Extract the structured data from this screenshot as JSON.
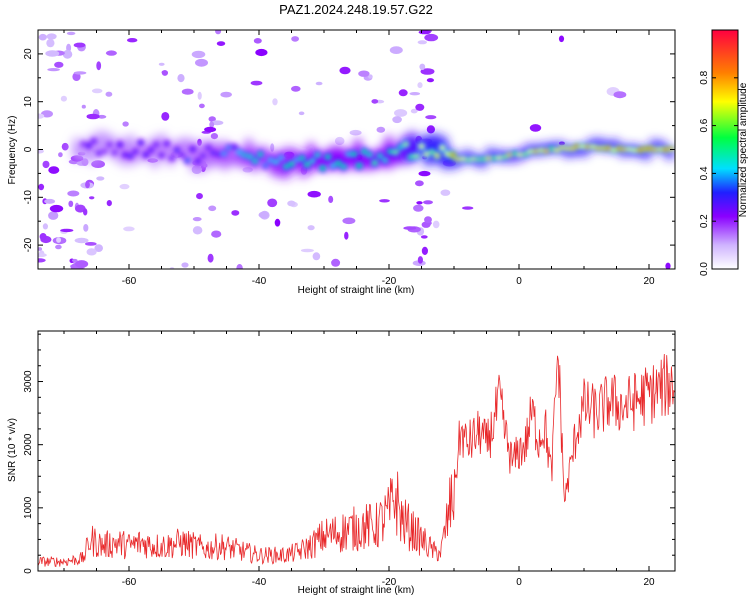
{
  "title": "PAZ1.2024.248.19.57.G22",
  "colors": {
    "snr_line": "#e8282a",
    "spectrogram_low": "#ffffff",
    "spectrogram_high": "#ff0040"
  },
  "chart_data": [
    {
      "type": "heatmap",
      "xlabel": "Height of straight line (km)",
      "ylabel": "Frequency (Hz)",
      "xlim": [
        -74,
        24
      ],
      "ylim": [
        -25,
        25
      ],
      "x_ticks": [
        -60,
        -40,
        -20,
        0,
        20
      ],
      "y_ticks": [
        -20,
        -10,
        0,
        10,
        20
      ],
      "colorbar": {
        "label": "Normalized spectral amplitude",
        "range": [
          0,
          1
        ],
        "ticks": [
          0.0,
          0.2,
          0.4,
          0.6,
          0.8
        ],
        "colormap": [
          "#ffffff",
          "#cfb4ff",
          "#8a00ff",
          "#2020ff",
          "#00dfff",
          "#00ff40",
          "#ffff00",
          "#ff8000",
          "#ff0040"
        ]
      },
      "ridge": [
        {
          "x": -66,
          "y": 0.5
        },
        {
          "x": -60,
          "y": 0
        },
        {
          "x": -55,
          "y": 0
        },
        {
          "x": -50,
          "y": -1
        },
        {
          "x": -45,
          "y": -0.5
        },
        {
          "x": -40,
          "y": -2
        },
        {
          "x": -35,
          "y": -2.5
        },
        {
          "x": -30,
          "y": -2.5
        },
        {
          "x": -25,
          "y": -2
        },
        {
          "x": -20,
          "y": -1
        },
        {
          "x": -16,
          "y": 0
        },
        {
          "x": -13,
          "y": 0
        },
        {
          "x": -10,
          "y": -2
        },
        {
          "x": -5,
          "y": -2
        },
        {
          "x": 0,
          "y": -1
        },
        {
          "x": 5,
          "y": 0
        },
        {
          "x": 10,
          "y": 0.5
        },
        {
          "x": 15,
          "y": 0
        },
        {
          "x": 24,
          "y": 0
        }
      ],
      "ridge_intensity": [
        {
          "x": -66,
          "v": 0.3
        },
        {
          "x": -50,
          "v": 0.35
        },
        {
          "x": -40,
          "v": 0.45
        },
        {
          "x": -30,
          "v": 0.55
        },
        {
          "x": -20,
          "v": 0.55
        },
        {
          "x": -12,
          "v": 0.85
        },
        {
          "x": -5,
          "v": 0.8
        },
        {
          "x": 0,
          "v": 0.7
        },
        {
          "x": 10,
          "v": 0.85
        },
        {
          "x": 24,
          "v": 0.9
        }
      ]
    },
    {
      "type": "line",
      "xlabel": "Height of straight line (km)",
      "ylabel": "SNR (10 * v/v)",
      "xlim": [
        -74,
        24
      ],
      "ylim": [
        0,
        3800
      ],
      "x_ticks": [
        -60,
        -40,
        -20,
        0,
        20
      ],
      "y_ticks": [
        0,
        1000,
        2000,
        3000
      ],
      "series": [
        {
          "x": [
            -74,
            -70,
            -67,
            -66,
            -64,
            -62,
            -60,
            -58,
            -56,
            -54,
            -52,
            -50,
            -48,
            -46,
            -44,
            -42,
            -40,
            -38,
            -36,
            -34,
            -32,
            -30,
            -28,
            -26,
            -24,
            -22,
            -20,
            -19,
            -18,
            -16,
            -15,
            -14,
            -13,
            -12,
            -11,
            -10,
            -9,
            -8,
            -7,
            -6,
            -5,
            -4,
            -3,
            -2,
            -1,
            0,
            1,
            2,
            3,
            4,
            5,
            5.5,
            6,
            6.5,
            7,
            8,
            9,
            10,
            12,
            14,
            16,
            18,
            20,
            22,
            24
          ],
          "values": [
            150,
            150,
            200,
            500,
            400,
            450,
            400,
            450,
            400,
            400,
            450,
            400,
            350,
            400,
            350,
            300,
            250,
            250,
            250,
            300,
            400,
            550,
            600,
            650,
            700,
            700,
            900,
            1200,
            800,
            600,
            500,
            400,
            300,
            300,
            800,
            1300,
            2200,
            2000,
            2100,
            2200,
            2000,
            2300,
            2700,
            2100,
            1700,
            1900,
            2000,
            2500,
            2100,
            2300,
            1500,
            2500,
            3500,
            2300,
            1100,
            1700,
            2300,
            2600,
            2500,
            2700,
            2600,
            2700,
            2800,
            2900,
            3000
          ]
        }
      ]
    }
  ]
}
